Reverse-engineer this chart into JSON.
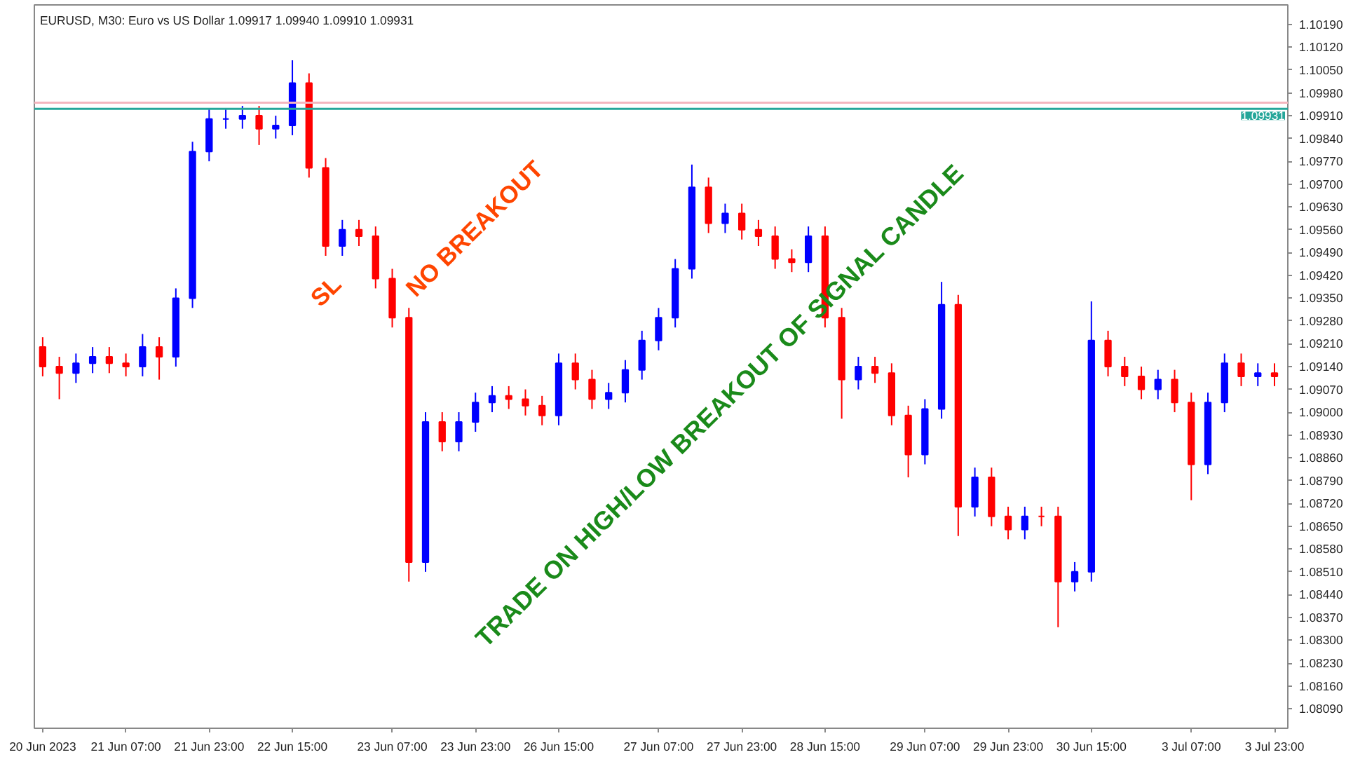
{
  "chart_data": {
    "type": "candlestick",
    "title": "EURUSD, M30:  Euro vs US Dollar  1.09917 1.09940 1.09910 1.09931",
    "annotations": [
      "NO BREAKOUT",
      "SL",
      "TRADE ON HIGH/LOW BREAKOUT OF SIGNAL CANDLE"
    ],
    "categories": [
      "20 Jun 2023",
      null,
      null,
      null,
      null,
      "21 Jun 07:00",
      null,
      null,
      null,
      null,
      "21 Jun 23:00",
      null,
      null,
      null,
      null,
      "22 Jun 15:00",
      null,
      null,
      null,
      null,
      null,
      "23 Jun 07:00",
      null,
      null,
      null,
      null,
      "23 Jun 23:00",
      null,
      null,
      null,
      null,
      "26 Jun 15:00",
      null,
      null,
      null,
      null,
      null,
      "27 Jun 07:00",
      null,
      null,
      null,
      null,
      "27 Jun 23:00",
      null,
      null,
      null,
      null,
      "28 Jun 15:00",
      null,
      null,
      null,
      null,
      null,
      "29 Jun 07:00",
      null,
      null,
      null,
      null,
      "29 Jun 23:00",
      null,
      null,
      null,
      null,
      "30 Jun 15:00",
      null,
      null,
      null,
      null,
      null,
      "3 Jul 07:00",
      null,
      null,
      null,
      null,
      "3 Jul 23:00"
    ],
    "ohlc": [
      [
        1.092,
        1.0923,
        1.0911,
        1.0914
      ],
      [
        1.0914,
        1.0917,
        1.0904,
        1.0912
      ],
      [
        1.0912,
        1.0918,
        1.0909,
        1.0915
      ],
      [
        1.0915,
        1.092,
        1.0912,
        1.0917
      ],
      [
        1.0917,
        1.092,
        1.0912,
        1.0915
      ],
      [
        1.0915,
        1.0918,
        1.0911,
        1.0914
      ],
      [
        1.0914,
        1.0924,
        1.0911,
        1.092
      ],
      [
        1.092,
        1.0923,
        1.091,
        1.0917
      ],
      [
        1.0917,
        1.0938,
        1.0914,
        1.0935
      ],
      [
        1.0935,
        1.0983,
        1.0932,
        1.098
      ],
      [
        1.098,
        1.0993,
        1.0977,
        1.099
      ],
      [
        1.099,
        1.0993,
        1.0987,
        1.099
      ],
      [
        1.099,
        1.0994,
        1.0987,
        1.0991
      ],
      [
        1.0991,
        1.0994,
        1.0982,
        1.0987
      ],
      [
        1.0987,
        1.0991,
        1.0984,
        1.0988
      ],
      [
        1.0988,
        1.1008,
        1.0985,
        1.1001
      ],
      [
        1.1001,
        1.1004,
        1.0972,
        1.0975
      ],
      [
        1.0975,
        1.0978,
        1.0948,
        1.0951
      ],
      [
        1.0951,
        1.0959,
        1.0948,
        1.0956
      ],
      [
        1.0956,
        1.0959,
        1.0951,
        1.0954
      ],
      [
        1.0954,
        1.0957,
        1.0938,
        1.0941
      ],
      [
        1.0941,
        1.0944,
        1.0926,
        1.0929
      ],
      [
        1.0929,
        1.0932,
        1.0848,
        1.0854
      ],
      [
        1.0854,
        1.09,
        1.0851,
        1.0897
      ],
      [
        1.0897,
        1.09,
        1.0888,
        1.0891
      ],
      [
        1.0891,
        1.09,
        1.0888,
        1.0897
      ],
      [
        1.0897,
        1.0906,
        1.0894,
        1.0903
      ],
      [
        1.0903,
        1.0908,
        1.09,
        1.0905
      ],
      [
        1.0905,
        1.0908,
        1.0901,
        1.0904
      ],
      [
        1.0904,
        1.0907,
        1.0899,
        1.0902
      ],
      [
        1.0902,
        1.0905,
        1.0896,
        1.0899
      ],
      [
        1.0899,
        1.0918,
        1.0896,
        1.0915
      ],
      [
        1.0915,
        1.0918,
        1.0907,
        1.091
      ],
      [
        1.091,
        1.0913,
        1.0901,
        1.0904
      ],
      [
        1.0904,
        1.0909,
        1.0901,
        1.0906
      ],
      [
        1.0906,
        1.0916,
        1.0903,
        1.0913
      ],
      [
        1.0913,
        1.0925,
        1.091,
        1.0922
      ],
      [
        1.0922,
        1.0932,
        1.0919,
        1.0929
      ],
      [
        1.0929,
        1.0947,
        1.0926,
        1.0944
      ],
      [
        1.0944,
        1.0976,
        1.0941,
        1.0969
      ],
      [
        1.0969,
        1.0972,
        1.0955,
        1.0958
      ],
      [
        1.0958,
        1.0964,
        1.0955,
        1.0961
      ],
      [
        1.0961,
        1.0964,
        1.0953,
        1.0956
      ],
      [
        1.0956,
        1.0959,
        1.0951,
        1.0954
      ],
      [
        1.0954,
        1.0957,
        1.0944,
        1.0947
      ],
      [
        1.0947,
        1.095,
        1.0943,
        1.0946
      ],
      [
        1.0946,
        1.0957,
        1.0943,
        1.0954
      ],
      [
        1.0954,
        1.0957,
        1.0926,
        1.0929
      ],
      [
        1.0929,
        1.0932,
        1.0898,
        1.091
      ],
      [
        1.091,
        1.0917,
        1.0907,
        1.0914
      ],
      [
        1.0914,
        1.0917,
        1.0909,
        1.0912
      ],
      [
        1.0912,
        1.0915,
        1.0896,
        1.0899
      ],
      [
        1.0899,
        1.0902,
        1.088,
        1.0887
      ],
      [
        1.0887,
        1.0904,
        1.0884,
        1.0901
      ],
      [
        1.0901,
        1.094,
        1.0898,
        1.0933
      ],
      [
        1.0933,
        1.0936,
        1.0862,
        1.0871
      ],
      [
        1.0871,
        1.0883,
        1.0868,
        1.088
      ],
      [
        1.088,
        1.0883,
        1.0865,
        1.0868
      ],
      [
        1.0868,
        1.0871,
        1.0861,
        1.0864
      ],
      [
        1.0864,
        1.0871,
        1.0861,
        1.0868
      ],
      [
        1.0868,
        1.0871,
        1.0865,
        1.0868
      ],
      [
        1.0868,
        1.0871,
        1.0834,
        1.0848
      ],
      [
        1.0848,
        1.0854,
        1.0845,
        1.0851
      ],
      [
        1.0851,
        1.0934,
        1.0848,
        1.0922
      ],
      [
        1.0922,
        1.0925,
        1.0911,
        1.0914
      ],
      [
        1.0914,
        1.0917,
        1.0908,
        1.0911
      ],
      [
        1.0911,
        1.0914,
        1.0904,
        1.0907
      ],
      [
        1.0907,
        1.0913,
        1.0904,
        1.091
      ],
      [
        1.091,
        1.0913,
        1.09,
        1.0903
      ],
      [
        1.0903,
        1.0906,
        1.0873,
        1.0884
      ],
      [
        1.0884,
        1.0906,
        1.0881,
        1.0903
      ],
      [
        1.0903,
        1.0918,
        1.09,
        1.0915
      ],
      [
        1.0915,
        1.0918,
        1.0908,
        1.0911
      ],
      [
        1.0911,
        1.0915,
        1.0908,
        1.0912
      ],
      [
        1.0912,
        1.0915,
        1.0908,
        1.0911
      ]
    ],
    "colors": [
      "#ff0000",
      "#ff0000",
      "#0000ff",
      "#0000ff",
      "#ff0000",
      "#ff0000",
      "#0000ff",
      "#ff0000",
      "#0000ff",
      "#0000ff",
      "#0000ff",
      "#0000ff",
      "#0000ff",
      "#ff0000",
      "#0000ff",
      "#0000ff",
      "#ff0000",
      "#ff0000",
      "#0000ff",
      "#ff0000",
      "#ff0000",
      "#ff0000",
      "#ff0000",
      "#0000ff",
      "#ff0000",
      "#0000ff",
      "#0000ff",
      "#0000ff",
      "#ff0000",
      "#ff0000",
      "#ff0000",
      "#0000ff",
      "#ff0000",
      "#ff0000",
      "#0000ff",
      "#0000ff",
      "#0000ff",
      "#0000ff",
      "#0000ff",
      "#0000ff",
      "#ff0000",
      "#0000ff",
      "#ff0000",
      "#ff0000",
      "#ff0000",
      "#ff0000",
      "#0000ff",
      "#ff0000",
      "#ff0000",
      "#0000ff",
      "#ff0000",
      "#ff0000",
      "#ff0000",
      "#0000ff",
      "#0000ff",
      "#ff0000",
      "#0000ff",
      "#ff0000",
      "#ff0000",
      "#0000ff",
      "#ff0000",
      "#ff0000",
      "#0000ff",
      "#0000ff",
      "#ff0000",
      "#ff0000",
      "#ff0000",
      "#0000ff",
      "#ff0000",
      "#ff0000",
      "#0000ff",
      "#0000ff",
      "#ff0000",
      "#0000ff",
      "#ff0000"
    ],
    "ylim": [
      1.0803,
      1.1025
    ],
    "yticks": [
      {
        "value": 1.1019,
        "label": "1.10190"
      },
      {
        "value": 1.1012,
        "label": "1.10120"
      },
      {
        "value": 1.1005,
        "label": "1.10050"
      },
      {
        "value": 1.0998,
        "label": "1.09980"
      },
      {
        "value": 1.0991,
        "label": "1.09910"
      },
      {
        "value": 1.0984,
        "label": "1.09840"
      },
      {
        "value": 1.0977,
        "label": "1.09770"
      },
      {
        "value": 1.097,
        "label": "1.09700"
      },
      {
        "value": 1.0963,
        "label": "1.09630"
      },
      {
        "value": 1.0956,
        "label": "1.09560"
      },
      {
        "value": 1.0949,
        "label": "1.09490"
      },
      {
        "value": 1.0942,
        "label": "1.09420"
      },
      {
        "value": 1.0935,
        "label": "1.09350"
      },
      {
        "value": 1.0928,
        "label": "1.09280"
      },
      {
        "value": 1.0921,
        "label": "1.09210"
      },
      {
        "value": 1.0914,
        "label": "1.09140"
      },
      {
        "value": 1.0907,
        "label": "1.09070"
      },
      {
        "value": 1.09,
        "label": "1.09000"
      },
      {
        "value": 1.0893,
        "label": "1.08930"
      },
      {
        "value": 1.0886,
        "label": "1.08860"
      },
      {
        "value": 1.0879,
        "label": "1.08790"
      },
      {
        "value": 1.0872,
        "label": "1.08720"
      },
      {
        "value": 1.0865,
        "label": "1.08650"
      },
      {
        "value": 1.0858,
        "label": "1.08580"
      },
      {
        "value": 1.0851,
        "label": "1.08510"
      },
      {
        "value": 1.0844,
        "label": "1.08440"
      },
      {
        "value": 1.0837,
        "label": "1.08370"
      },
      {
        "value": 1.083,
        "label": "1.08300"
      },
      {
        "value": 1.0823,
        "label": "1.08230"
      },
      {
        "value": 1.0816,
        "label": "1.08160"
      },
      {
        "value": 1.0809,
        "label": "1.08090"
      }
    ],
    "ref_lines": [
      {
        "axis": "y",
        "value": 1.0995,
        "label": null,
        "color": "#f4b6bf"
      },
      {
        "axis": "y",
        "value": 1.09931,
        "label": "1.09931",
        "color": "#26a69a"
      }
    ],
    "grid": false
  }
}
